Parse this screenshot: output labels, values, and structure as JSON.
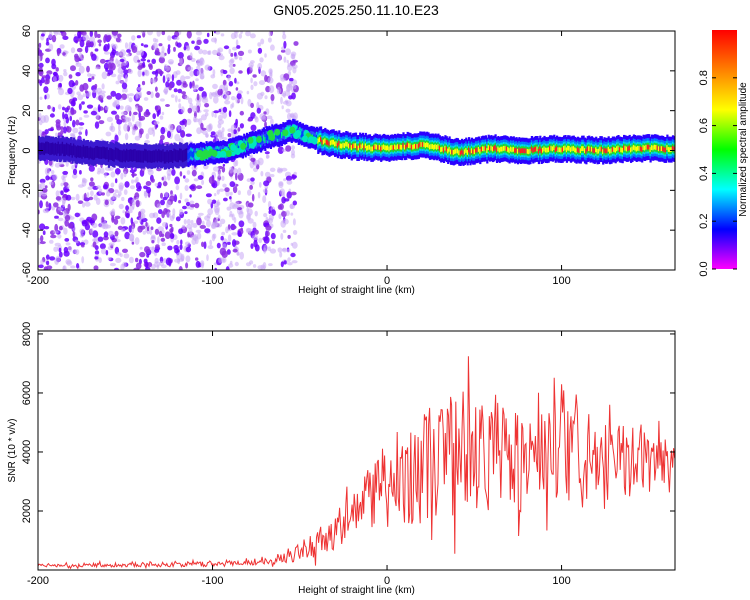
{
  "title": "GN05.2025.250.11.10.E23",
  "chart_data": [
    {
      "type": "heatmap",
      "xlabel": "Height of straight line (km)",
      "ylabel": "Frequency (Hz)",
      "xlim": [
        -200,
        165
      ],
      "ylim": [
        -60,
        60
      ],
      "xticks": [
        -200,
        -100,
        0,
        100
      ],
      "yticks": [
        -60,
        -40,
        -20,
        0,
        20,
        40,
        60
      ],
      "colorbar": {
        "label": "Normalized spectral amplitude",
        "range": [
          0.0,
          1.0
        ],
        "ticks": [
          0.0,
          0.2,
          0.4,
          0.6,
          0.8
        ],
        "colormap": [
          "#ff00ff",
          "#0000ff",
          "#00ffff",
          "#00ff00",
          "#ffff00",
          "#ff8000",
          "#ff0000"
        ]
      },
      "ridge": {
        "x": [
          -190,
          -160,
          -130,
          -110,
          -90,
          -70,
          -55,
          -45,
          -35,
          -20,
          0,
          20,
          40,
          60,
          80,
          100,
          120,
          140,
          165
        ],
        "y": [
          1,
          -2,
          -3,
          -2,
          0,
          6,
          10,
          7,
          4,
          2,
          1,
          3,
          -1,
          1,
          0,
          1,
          0,
          1,
          1
        ]
      },
      "grid": false
    },
    {
      "type": "line",
      "xlabel": "Height of straight line (km)",
      "ylabel": "SNR (10 * v/v)",
      "xlim": [
        -200,
        165
      ],
      "ylim": [
        0,
        8100
      ],
      "xticks": [
        -200,
        -100,
        0,
        100
      ],
      "yticks": [
        2000,
        4000,
        6000,
        8000
      ],
      "series": [
        {
          "color": "#ee3333",
          "envelope_x": [
            -200,
            -150,
            -100,
            -70,
            -55,
            -45,
            -35,
            -20,
            -10,
            0,
            10,
            20,
            30,
            40,
            50,
            60,
            70,
            80,
            90,
            100,
            120,
            140,
            160,
            165
          ],
          "envelope_mid": [
            150,
            180,
            200,
            300,
            450,
            800,
            1100,
            1800,
            2500,
            3000,
            3200,
            3500,
            3800,
            4000,
            4000,
            3900,
            3800,
            3700,
            3800,
            3800,
            3600,
            3700,
            3700,
            3800
          ],
          "envelope_amp": [
            100,
            120,
            150,
            200,
            350,
            700,
            900,
            1500,
            2000,
            2400,
            2800,
            3200,
            3600,
            3800,
            3500,
            3300,
            3200,
            3000,
            3200,
            2800,
            2200,
            2000,
            1600,
            1600
          ]
        }
      ],
      "grid": false
    }
  ]
}
